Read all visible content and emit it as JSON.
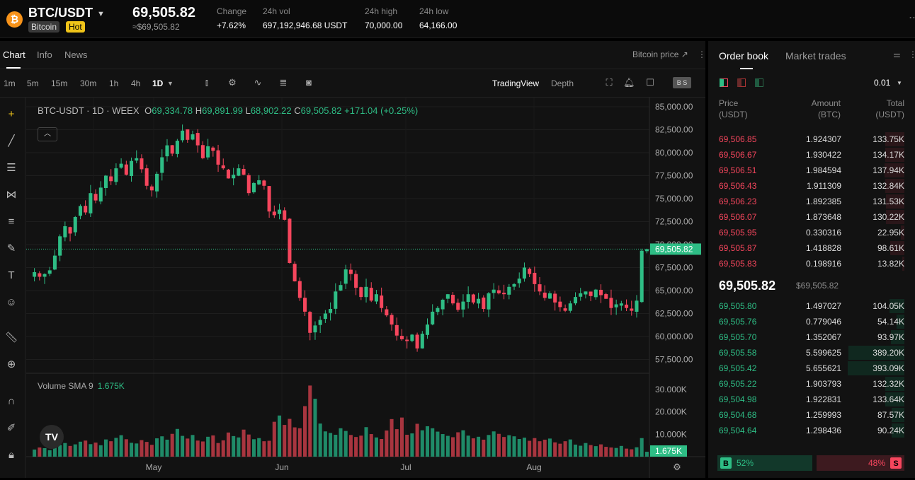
{
  "header": {
    "coin_icon": "bitcoin-icon",
    "pair": "BTC/USDT",
    "name_tag": "Bitcoin",
    "hot_tag": "Hot",
    "last_price": "69,505.82",
    "last_price_fiat": "≈$69,505.82",
    "stats": [
      {
        "label": "Change",
        "value": "+7.62%"
      },
      {
        "label": "24h vol",
        "value": "697,192,946.68 USDT"
      },
      {
        "label": "24h high",
        "value": "70,000.00"
      },
      {
        "label": "24h low",
        "value": "64,166.00"
      }
    ]
  },
  "chart_tabs": {
    "tabs": [
      "Chart",
      "Info",
      "News"
    ],
    "active": "Chart",
    "bitcoin_price_link": "Bitcoin price ↗"
  },
  "toolbar": {
    "timeframes": [
      "1m",
      "5m",
      "15m",
      "30m",
      "1h",
      "4h",
      "1D"
    ],
    "active_timeframe": "1D",
    "views": [
      "TradingView",
      "Depth"
    ]
  },
  "legend": {
    "symbol": "BTC-USDT · 1D · WEEX",
    "o_label": "O",
    "o_value": "69,334.78",
    "h_label": "H",
    "h_value": "69,891.99",
    "l_label": "L",
    "l_value": "68,902.22",
    "c_label": "C",
    "c_value": "69,505.82",
    "change": "+171.04 (+0.25%)"
  },
  "volume_legend": {
    "label": "Volume SMA 9",
    "value": "1.675K"
  },
  "chart_data": {
    "type": "candlestick",
    "x_axis_labels": [
      "May",
      "Jun",
      "Jul",
      "Aug"
    ],
    "y_axis_ticks": [
      "85,000.00",
      "82,500.00",
      "80,000.00",
      "77,500.00",
      "75,000.00",
      "72,500.00",
      "70,000.00",
      "67,500.00",
      "65,000.00",
      "62,500.00",
      "60,000.00",
      "57,500.00"
    ],
    "ylim": [
      56000,
      86000
    ],
    "current_price_label": "69,505.82",
    "volume_axis_ticks": [
      "30.000K",
      "20.000K",
      "10.000K"
    ],
    "volume_current_label": "1.675K",
    "volume_ylim": [
      0,
      33500
    ],
    "up_color": "#2ebd85",
    "down_color": "#f6465d",
    "close_series": [
      67000,
      66500,
      66800,
      67200,
      68800,
      70900,
      72000,
      71200,
      73000,
      74200,
      73500,
      75600,
      74800,
      76200,
      77500,
      76900,
      78300,
      78800,
      77600,
      79100,
      79400,
      78200,
      76400,
      75900,
      77700,
      79500,
      80800,
      79900,
      81300,
      82400,
      81400,
      82000,
      80800,
      79400,
      80700,
      80200,
      78700,
      78300,
      77200,
      77600,
      78300,
      77600,
      75600,
      76700,
      77000,
      76400,
      73600,
      73200,
      73800,
      72700,
      68000,
      66000,
      64200,
      62700,
      60400,
      61200,
      61800,
      62500,
      63000,
      64900,
      65600,
      67300,
      66800,
      65300,
      64300,
      65400,
      63900,
      64600,
      63100,
      62300,
      61300,
      60100,
      59700,
      59500,
      60200,
      58700,
      60300,
      61300,
      62700,
      63100,
      64000,
      64600,
      63600,
      62900,
      63800,
      64600,
      63700,
      64100,
      63000,
      64700,
      65100,
      64700,
      64600,
      65400,
      65700,
      66300,
      67500,
      66800,
      65700,
      64900,
      64200,
      64700,
      63700,
      63200,
      62800,
      63600,
      64300,
      64700,
      64900,
      64400,
      65100,
      64500,
      64100,
      63100,
      63500,
      63600,
      63100,
      62800,
      63900,
      69334,
      69505
    ],
    "volume_series": [
      3200,
      4100,
      3800,
      2900,
      4600,
      5200,
      6100,
      4800,
      5500,
      6700,
      7200,
      5600,
      6300,
      5100,
      7700,
      6900,
      8400,
      9600,
      7800,
      6200,
      5900,
      7400,
      6600,
      5300,
      8200,
      9100,
      7600,
      10200,
      12400,
      9300,
      8100,
      9700,
      7200,
      6800,
      8900,
      9500,
      6100,
      7300,
      10800,
      9200,
      8600,
      12100,
      9900,
      7800,
      8300,
      6900,
      7100,
      15600,
      18400,
      14200,
      16900,
      13100,
      12700,
      22600,
      31800,
      25900,
      14800,
      11300,
      10600,
      9800,
      12700,
      11500,
      9700,
      8800,
      9400,
      13200,
      10100,
      8600,
      7900,
      11700,
      16800,
      12300,
      17500,
      9800,
      10400,
      14700,
      11800,
      13600,
      12700,
      11200,
      10100,
      9300,
      8700,
      10900,
      11800,
      9400,
      8200,
      8900,
      7600,
      9700,
      11300,
      10200,
      8800,
      9600,
      9100,
      7900,
      8500,
      7100,
      8300,
      6900,
      7600,
      8100,
      6400,
      5800,
      6900,
      7700,
      5400,
      4900,
      6100,
      5200,
      4700,
      5500,
      4400,
      4100,
      3900,
      4800,
      3600,
      3300,
      4200,
      8300,
      2200
    ],
    "volume_up_color": "#1f8a68",
    "volume_down_color": "#a8353f"
  },
  "orderbook": {
    "tabs": [
      "Order book",
      "Market trades"
    ],
    "precision": "0.01",
    "col_price": "Price (USDT)",
    "col_amount": "Amount (BTC)",
    "col_total": "Total (USDT)",
    "asks": [
      {
        "price": "69,506.85",
        "amount": "1.924307",
        "total": "133.75K",
        "depth": 0.34
      },
      {
        "price": "69,506.67",
        "amount": "1.930422",
        "total": "134.17K",
        "depth": 0.34
      },
      {
        "price": "69,506.51",
        "amount": "1.984594",
        "total": "137.94K",
        "depth": 0.35
      },
      {
        "price": "69,506.43",
        "amount": "1.911309",
        "total": "132.84K",
        "depth": 0.34
      },
      {
        "price": "69,506.23",
        "amount": "1.892385",
        "total": "131.53K",
        "depth": 0.33
      },
      {
        "price": "69,506.07",
        "amount": "1.873648",
        "total": "130.22K",
        "depth": 0.33
      },
      {
        "price": "69,505.95",
        "amount": "0.330316",
        "total": "22.95K",
        "depth": 0.06
      },
      {
        "price": "69,505.87",
        "amount": "1.418828",
        "total": "98.61K",
        "depth": 0.25
      },
      {
        "price": "69,505.83",
        "amount": "0.198916",
        "total": "13.82K",
        "depth": 0.04
      }
    ],
    "mid_price": "69,505.82",
    "mid_price_fiat": "$69,505.82",
    "bids": [
      {
        "price": "69,505.80",
        "amount": "1.497027",
        "total": "104.05K",
        "depth": 0.26
      },
      {
        "price": "69,505.76",
        "amount": "0.779046",
        "total": "54.14K",
        "depth": 0.14
      },
      {
        "price": "69,505.70",
        "amount": "1.352067",
        "total": "93.97K",
        "depth": 0.24
      },
      {
        "price": "69,505.58",
        "amount": "5.599625",
        "total": "389.20K",
        "depth": 0.99
      },
      {
        "price": "69,505.42",
        "amount": "5.655621",
        "total": "393.09K",
        "depth": 1.0
      },
      {
        "price": "69,505.22",
        "amount": "1.903793",
        "total": "132.32K",
        "depth": 0.34
      },
      {
        "price": "69,504.98",
        "amount": "1.922831",
        "total": "133.64K",
        "depth": 0.34
      },
      {
        "price": "69,504.68",
        "amount": "1.259993",
        "total": "87.57K",
        "depth": 0.22
      },
      {
        "price": "69,504.64",
        "amount": "1.298436",
        "total": "90.24K",
        "depth": 0.23
      }
    ],
    "buy_label": "B",
    "buy_pct": "52%",
    "sell_label": "S",
    "sell_pct": "48%",
    "buy_ratio": 0.52
  }
}
